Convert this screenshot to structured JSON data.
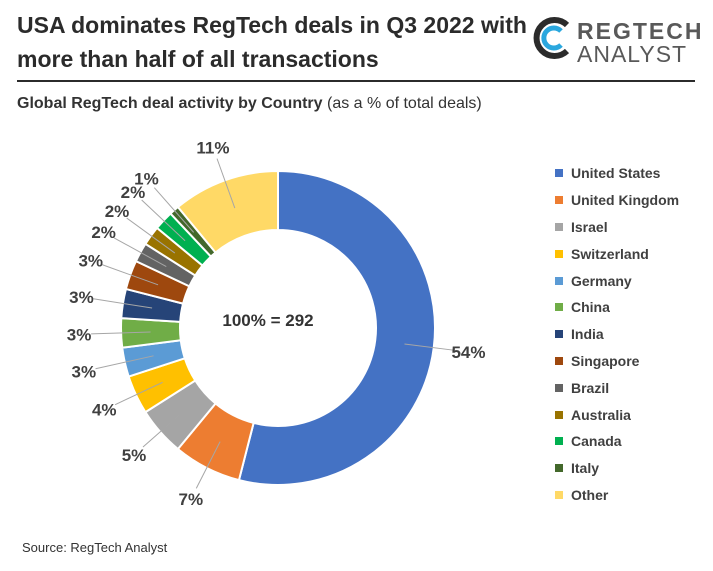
{
  "header": {
    "title": "USA dominates RegTech deals in Q3 2022 with more than half of all transactions",
    "logo_line1": "REGTECH",
    "logo_line2": "ANALYST"
  },
  "subtitle": {
    "bold": "Global RegTech deal activity by Country",
    "normal": "(as a % of total deals)"
  },
  "chart_data": {
    "type": "pie",
    "donut": true,
    "title": "Global RegTech deal activity by Country (as a % of total deals)",
    "center_label": "100% = 292",
    "categories": [
      "United States",
      "United Kingdom",
      "Israel",
      "Switzerland",
      "Germany",
      "China",
      "India",
      "Singapore",
      "Brazil",
      "Australia",
      "Canada",
      "Italy",
      "Other"
    ],
    "values": [
      54,
      7,
      5,
      4,
      3,
      3,
      3,
      3,
      2,
      2,
      2,
      1,
      11
    ],
    "labels": [
      "54%",
      "7%",
      "5%",
      "4%",
      "3%",
      "3%",
      "3%",
      "3%",
      "2%",
      "2%",
      "2%",
      "1%",
      "11%"
    ],
    "colors": [
      "#4472c4",
      "#ed7d31",
      "#a5a5a5",
      "#ffc000",
      "#5b9bd5",
      "#70ad47",
      "#264478",
      "#9e480e",
      "#636363",
      "#997300",
      "#00b050",
      "#43682b",
      "#ffd966"
    ],
    "legend_position": "right"
  },
  "footer": {
    "source": "Source: RegTech Analyst"
  }
}
